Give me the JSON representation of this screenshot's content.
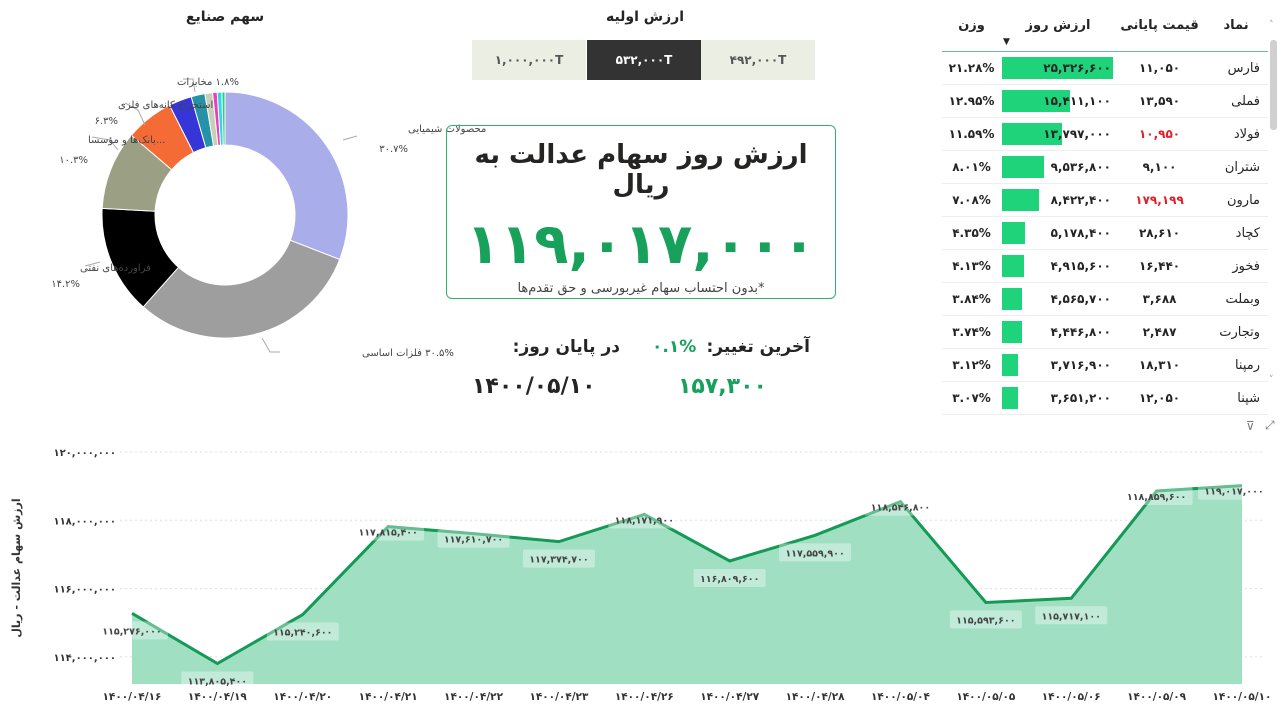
{
  "sector_pie": {
    "title": "سهم صنایع",
    "chart_data": {
      "type": "pie",
      "donut": true,
      "slices": [
        {
          "name": "محصولات شیمیایی",
          "value": 30.7,
          "label": "۳۰.۷%",
          "color": "#A9AEEB"
        },
        {
          "name": "فلزات اساسی",
          "value": 30.5,
          "label": "۳۰.۵%",
          "color": "#9E9E9E"
        },
        {
          "name": "فراورده‌های نفتی",
          "value": 14.2,
          "label": "۱۴.۲%",
          "color": "#000000"
        },
        {
          "name": "...بانک‌ها و مؤسسا",
          "value": 10.3,
          "label": "۱۰.۳%",
          "color": "#9B9F84"
        },
        {
          "name": "استخراج کانه‌های فلزی",
          "value": 6.3,
          "label": "۶.۳%",
          "color": "#F56B35"
        },
        {
          "name": "",
          "value": 3.0,
          "label": "",
          "color": "#3535D8"
        },
        {
          "name": "مخابرات",
          "value": 1.8,
          "label": "۱.۸%",
          "color": "#2592A8"
        },
        {
          "name": "",
          "value": 1.0,
          "label": "",
          "color": "#C8CFB4"
        },
        {
          "name": "",
          "value": 0.6,
          "label": "",
          "color": "#E83FC0"
        },
        {
          "name": "",
          "value": 0.6,
          "label": "",
          "color": "#33D6E0"
        },
        {
          "name": "",
          "value": 0.4,
          "label": "",
          "color": "#1ED37A"
        }
      ]
    }
  },
  "initial_value": {
    "title": "ارزش اولیه",
    "options": [
      "۱,۰۰۰,۰۰۰T",
      "۵۳۲,۰۰۰T",
      "۴۹۲,۰۰۰T"
    ],
    "selected": "۵۳۲,۰۰۰T"
  },
  "card": {
    "title": "ارزش روز سهام عدالت به ریال",
    "value": "۱۱۹,۰۱۷,۰۰۰",
    "note": "*بدون احتساب سهام غیربورسی و حق تقدم‌ها"
  },
  "stats": {
    "last_change_label": "آخرین تغییر:",
    "last_change_value": "۰.۱%",
    "end_of_day_label": "در پایان روز:",
    "change_amount": "۱۵۷,۳۰۰",
    "date": "۱۴۰۰/۰۵/۱۰"
  },
  "holdings": {
    "columns": [
      "نماد",
      "قیمت پایانی",
      "ارزش روز",
      "وزن"
    ],
    "sort_column": "ارزش روز",
    "rows": [
      {
        "symbol": "فارس",
        "price": "۱۱,۰۵۰",
        "value": "۲۵,۳۲۶,۶۰۰",
        "weight": "۲۱.۲۸%",
        "w": 21.28,
        "red": false
      },
      {
        "symbol": "فملی",
        "price": "۱۳,۵۹۰",
        "value": "۱۵,۴۱۱,۱۰۰",
        "weight": "۱۲.۹۵%",
        "w": 12.95,
        "red": false
      },
      {
        "symbol": "فولاد",
        "price": "۱۰,۹۵۰",
        "value": "۱۳,۷۹۷,۰۰۰",
        "weight": "۱۱.۵۹%",
        "w": 11.59,
        "red": true
      },
      {
        "symbol": "شتران",
        "price": "۹,۱۰۰",
        "value": "۹,۵۳۶,۸۰۰",
        "weight": "۸.۰۱%",
        "w": 8.01,
        "red": false
      },
      {
        "symbol": "مارون",
        "price": "۱۷۹,۱۹۹",
        "value": "۸,۴۲۲,۴۰۰",
        "weight": "۷.۰۸%",
        "w": 7.08,
        "red": true
      },
      {
        "symbol": "کچاد",
        "price": "۲۸,۶۱۰",
        "value": "۵,۱۷۸,۴۰۰",
        "weight": "۴.۳۵%",
        "w": 4.35,
        "red": false
      },
      {
        "symbol": "فخوز",
        "price": "۱۶,۴۴۰",
        "value": "۴,۹۱۵,۶۰۰",
        "weight": "۴.۱۳%",
        "w": 4.13,
        "red": false
      },
      {
        "symbol": "وبملت",
        "price": "۳,۶۸۸",
        "value": "۴,۵۶۵,۷۰۰",
        "weight": "۳.۸۴%",
        "w": 3.84,
        "red": false
      },
      {
        "symbol": "وتجارت",
        "price": "۲,۴۸۷",
        "value": "۴,۴۴۶,۸۰۰",
        "weight": "۳.۷۴%",
        "w": 3.74,
        "red": false
      },
      {
        "symbol": "رمپنا",
        "price": "۱۸,۳۱۰",
        "value": "۳,۷۱۶,۹۰۰",
        "weight": "۳.۱۲%",
        "w": 3.12,
        "red": false
      },
      {
        "symbol": "شپنا",
        "price": "۱۲,۰۵۰",
        "value": "۳,۶۵۱,۲۰۰",
        "weight": "۳.۰۷%",
        "w": 3.07,
        "red": false
      }
    ]
  },
  "colors": {
    "accent": "#17A15B",
    "bar": "#1ED37A",
    "negative": "#E0202A",
    "area": "#9CDDC0",
    "line": "#139A55"
  },
  "line_chart": {
    "chart_data": {
      "type": "area",
      "ylabel": "ارزش سهام عدالت - ریال",
      "ylim": [
        113500000,
        120000000
      ],
      "yticks": [
        114000000,
        116000000,
        118000000,
        120000000
      ],
      "ytick_labels": [
        "۱۱۴,۰۰۰,۰۰۰",
        "۱۱۶,۰۰۰,۰۰۰",
        "۱۱۸,۰۰۰,۰۰۰",
        "۱۲۰,۰۰۰,۰۰۰"
      ],
      "grid": true,
      "x": [
        "۱۴۰۰/۰۴/۱۶",
        "۱۴۰۰/۰۴/۱۹",
        "۱۴۰۰/۰۴/۲۰",
        "۱۴۰۰/۰۴/۲۱",
        "۱۴۰۰/۰۴/۲۲",
        "۱۴۰۰/۰۴/۲۳",
        "۱۴۰۰/۰۴/۲۶",
        "۱۴۰۰/۰۴/۲۷",
        "۱۴۰۰/۰۴/۲۸",
        "۱۴۰۰/۰۵/۰۴",
        "۱۴۰۰/۰۵/۰۵",
        "۱۴۰۰/۰۵/۰۶",
        "۱۴۰۰/۰۵/۰۹",
        "۱۴۰۰/۰۵/۱۰"
      ],
      "y": [
        115276000,
        113805400,
        115240600,
        117815400,
        117610700,
        117374700,
        118171900,
        116809600,
        117559900,
        118546800,
        115593600,
        115717100,
        118859600,
        119017000
      ],
      "labels": [
        "۱۱۵,۲۷۶,۰۰۰",
        "۱۱۳,۸۰۵,۴۰۰",
        "۱۱۵,۲۴۰,۶۰۰",
        "۱۱۷,۸۱۵,۴۰۰",
        "۱۱۷,۶۱۰,۷۰۰",
        "۱۱۷,۳۷۴,۷۰۰",
        "۱۱۸,۱۷۱,۹۰۰",
        "۱۱۶,۸۰۹,۶۰۰",
        "۱۱۷,۵۵۹,۹۰۰",
        "۱۱۸,۵۴۶,۸۰۰",
        "۱۱۵,۵۹۳,۶۰۰",
        "۱۱۵,۷۱۷,۱۰۰",
        "۱۱۸,۸۵۹,۶۰۰",
        "۱۱۹,۰۱۷,۰۰۰"
      ]
    }
  }
}
